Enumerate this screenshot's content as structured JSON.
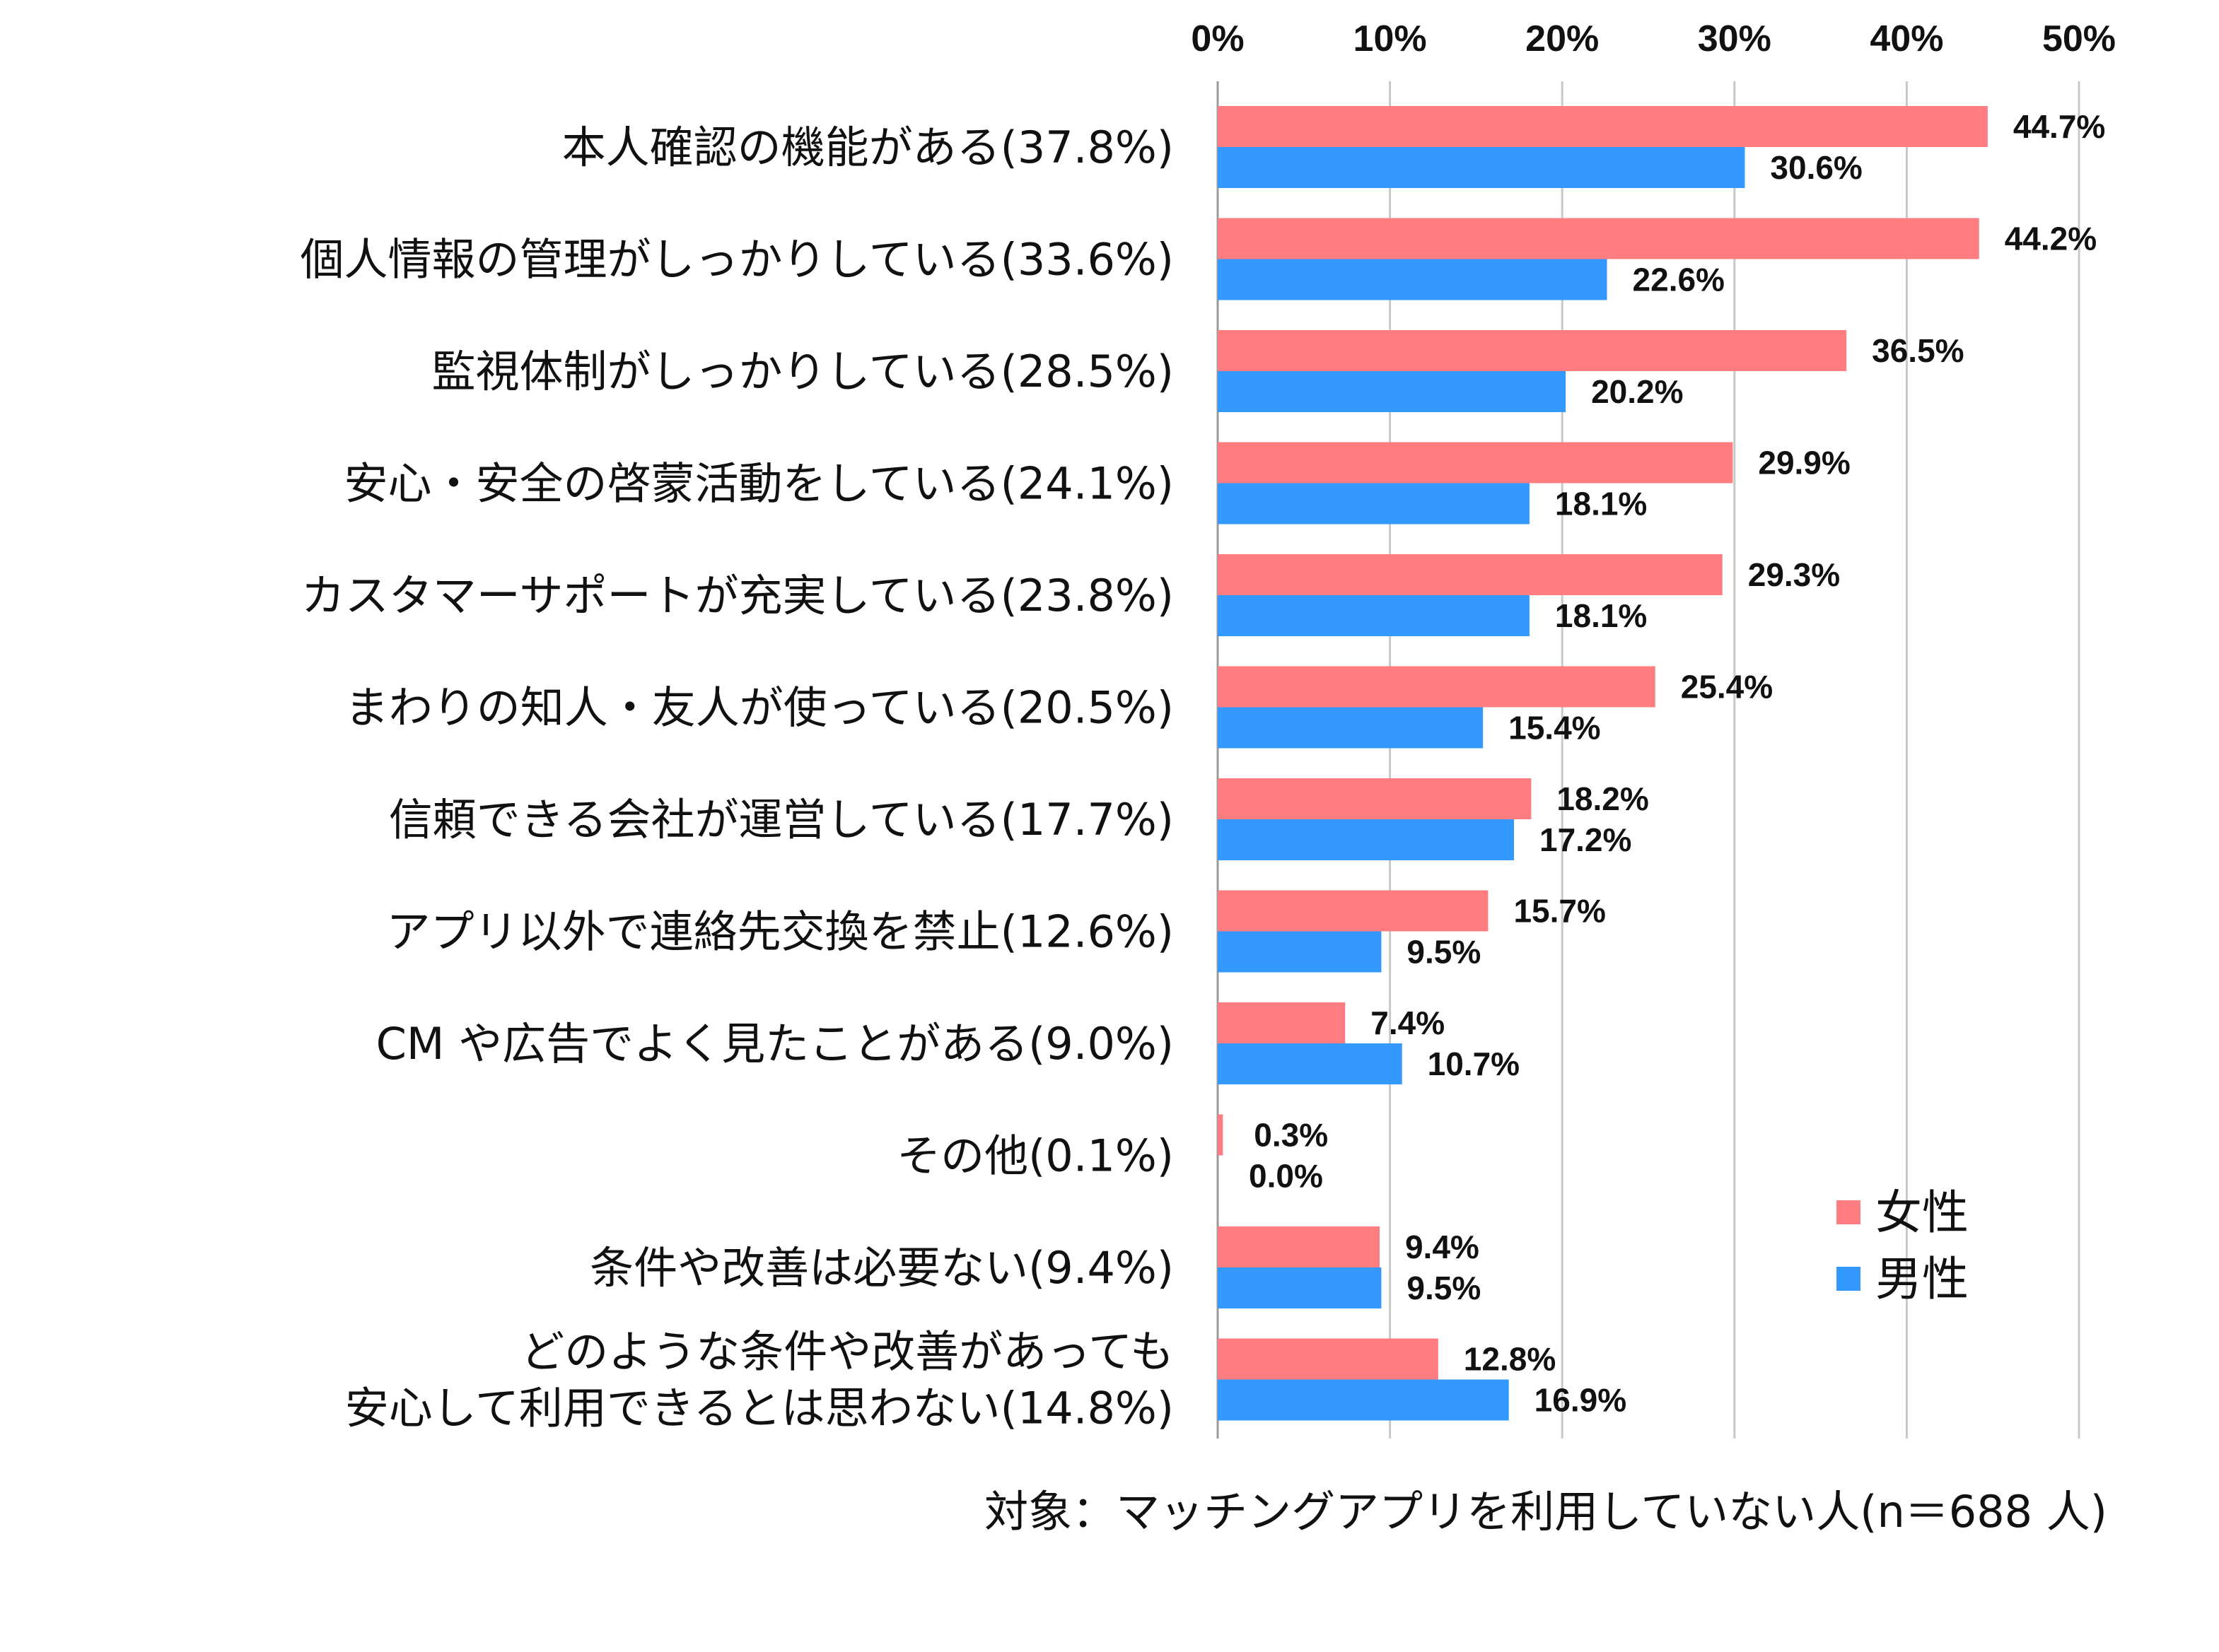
{
  "chart_data": {
    "type": "bar",
    "orientation": "horizontal",
    "categories": [
      [
        "本人確認の機能がある(37.8%)"
      ],
      [
        "個人情報の管理がしっかりしている(33.6%)"
      ],
      [
        "監視体制がしっかりしている(28.5%)"
      ],
      [
        "安心・安全の啓蒙活動をしている(24.1%)"
      ],
      [
        "カスタマーサポートが充実している(23.8%)"
      ],
      [
        "まわりの知人・友人が使っている(20.5%)"
      ],
      [
        "信頼できる会社が運営している(17.7%)"
      ],
      [
        "アプリ以外で連絡先交換を禁止(12.6%)"
      ],
      [
        "CM や広告でよく見たことがある(9.0%)"
      ],
      [
        "その他(0.1%)"
      ],
      [
        "条件や改善は必要ない(9.4%)"
      ],
      [
        "どのような条件や改善があっても",
        "安心して利用できるとは思わない(14.8%)"
      ]
    ],
    "series": [
      {
        "name": "女性",
        "color": "#ff7c80",
        "values": [
          44.7,
          44.2,
          36.5,
          29.9,
          29.3,
          25.4,
          18.2,
          15.7,
          7.4,
          0.3,
          9.4,
          12.8
        ],
        "value_labels": [
          "44.7%",
          "44.2%",
          "36.5%",
          "29.9%",
          "29.3%",
          "25.4%",
          "18.2%",
          "15.7%",
          "7.4%",
          "0.3%",
          "9.4%",
          "12.8%"
        ]
      },
      {
        "name": "男性",
        "color": "#3399ff",
        "values": [
          30.6,
          22.6,
          20.2,
          18.1,
          18.1,
          15.4,
          17.2,
          9.5,
          10.7,
          0.0,
          9.5,
          16.9
        ],
        "value_labels": [
          "30.6%",
          "22.6%",
          "20.2%",
          "18.1%",
          "18.1%",
          "15.4%",
          "17.2%",
          "9.5%",
          "10.7%",
          "0.0%",
          "9.5%",
          "16.9%"
        ]
      }
    ],
    "xlim": [
      0,
      50
    ],
    "ticks": [
      0,
      10,
      20,
      30,
      40,
      50
    ],
    "tick_labels": [
      "0%",
      "10%",
      "20%",
      "30%",
      "40%",
      "50%"
    ],
    "axis_position": "top",
    "grid": true,
    "legend_position": "bottom-right",
    "title": "",
    "xlabel": "",
    "ylabel": ""
  },
  "footnote": "対象：マッチングアプリを利用していない人(n＝688 人)"
}
